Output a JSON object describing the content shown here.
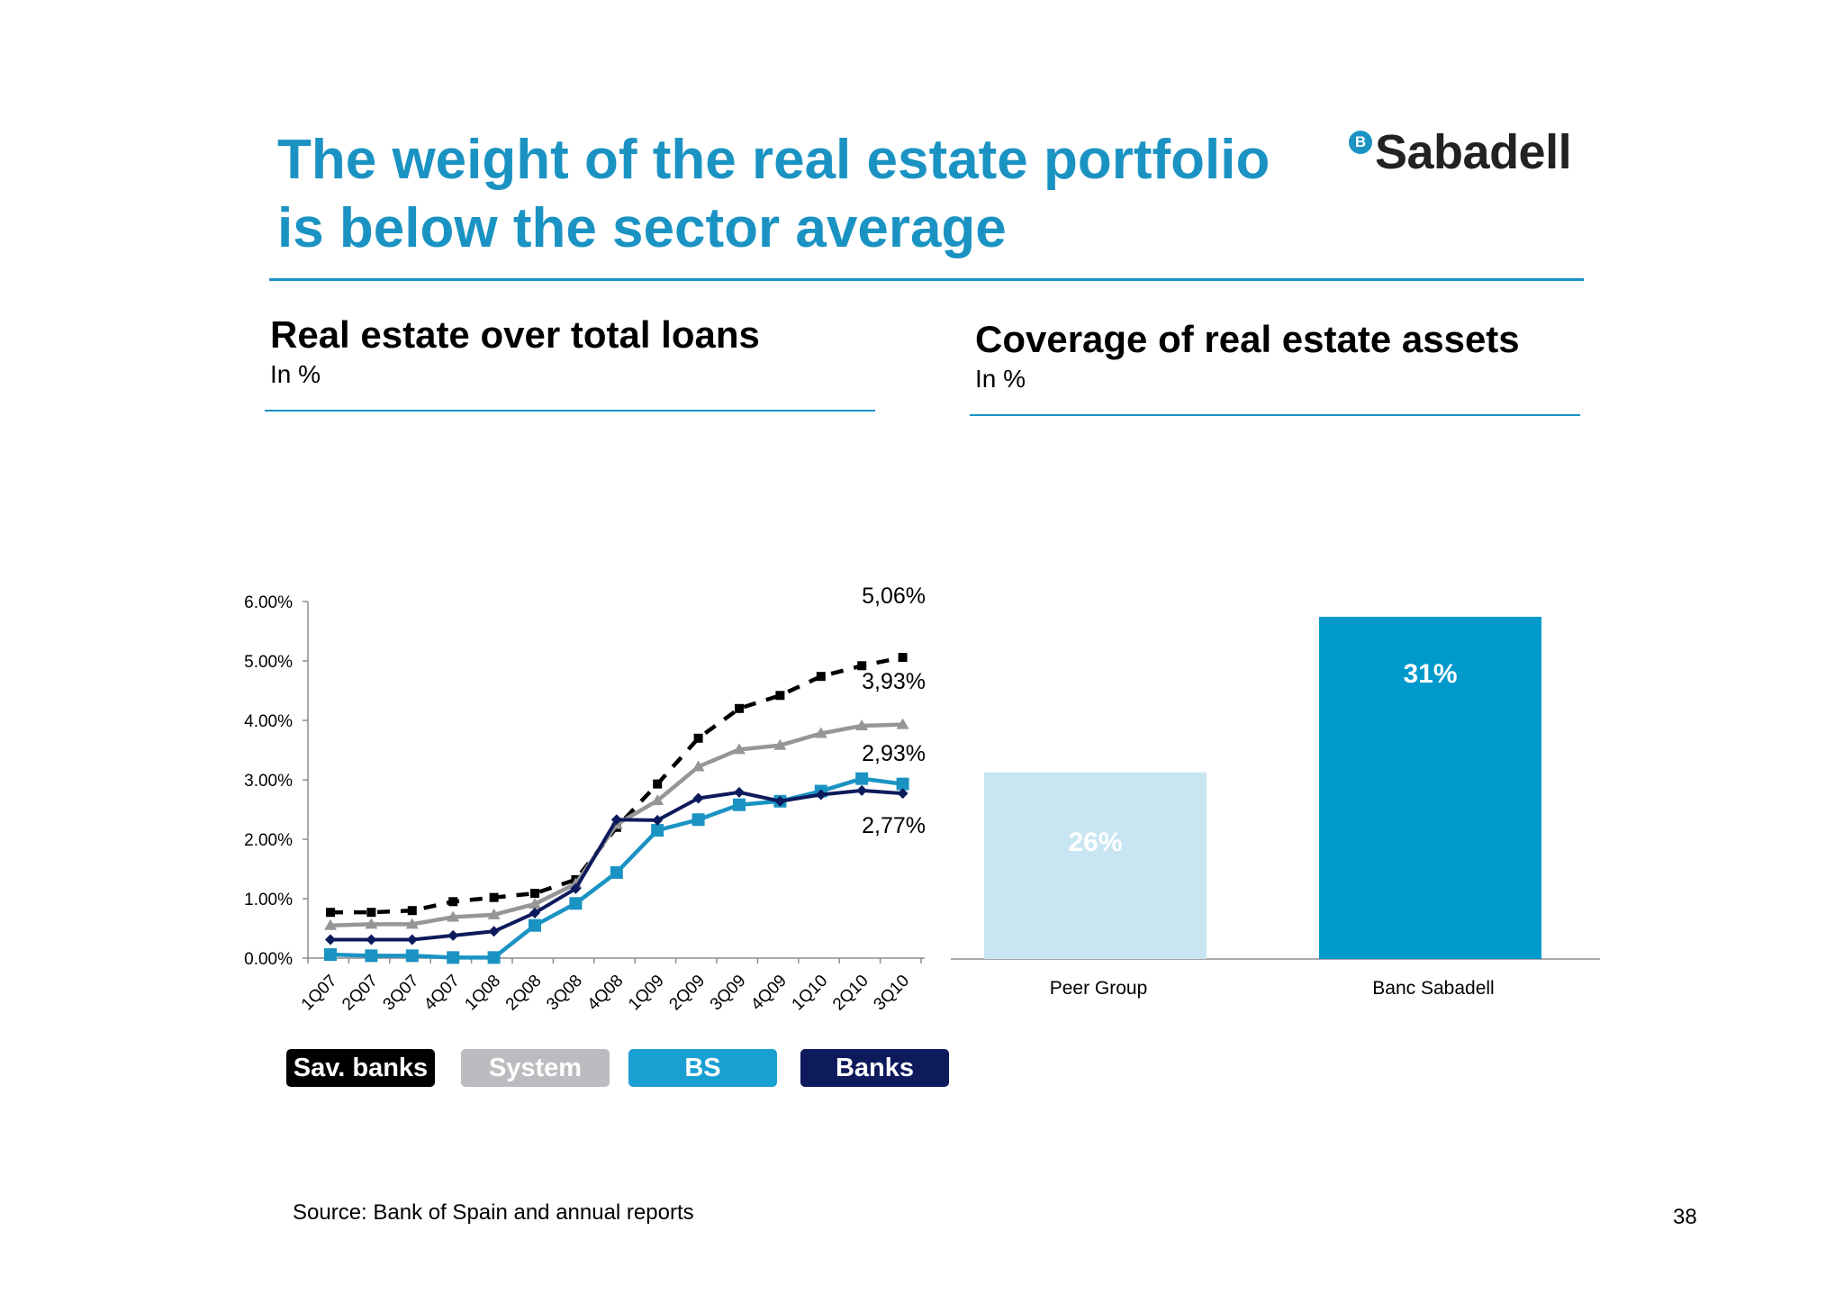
{
  "header": {
    "title_line1": "The weight of the real estate portfolio",
    "title_line2": "is below the sector average",
    "logo_badge": "B",
    "logo_text": "Sabadell"
  },
  "left_panel": {
    "title": "Real estate over total loans",
    "subtitle": "In %"
  },
  "right_panel": {
    "title": "Coverage of real estate assets",
    "subtitle": "In %"
  },
  "footer": {
    "source": "Source: Bank of Spain and annual reports",
    "page_number": "38"
  },
  "chart_data": [
    {
      "type": "line",
      "categories": [
        "1Q07",
        "2Q07",
        "3Q07",
        "4Q07",
        "1Q08",
        "2Q08",
        "3Q08",
        "4Q08",
        "1Q09",
        "2Q09",
        "3Q09",
        "4Q09",
        "1Q10",
        "2Q10",
        "3Q10"
      ],
      "y_ticks": [
        "0.00%",
        "1.00%",
        "2.00%",
        "3.00%",
        "4.00%",
        "5.00%",
        "6.00%"
      ],
      "ylim": [
        0,
        6
      ],
      "series": [
        {
          "name": "Sav. banks",
          "color": "#000000",
          "line_style": "dashed",
          "marker": "square",
          "values": [
            0.77,
            0.77,
            0.8,
            0.95,
            1.02,
            1.09,
            1.32,
            2.2,
            2.93,
            3.7,
            4.2,
            4.42,
            4.74,
            4.92,
            5.06
          ]
        },
        {
          "name": "System",
          "color": "#969696",
          "line_style": "solid",
          "marker": "triangle",
          "values": [
            0.55,
            0.57,
            0.57,
            0.69,
            0.73,
            0.91,
            1.25,
            2.25,
            2.65,
            3.22,
            3.51,
            3.58,
            3.78,
            3.91,
            3.93
          ]
        },
        {
          "name": "BS",
          "color": "#1a93c3",
          "line_style": "solid",
          "marker": "square",
          "values": [
            0.06,
            0.04,
            0.04,
            0.01,
            0.01,
            0.55,
            0.92,
            1.44,
            2.15,
            2.33,
            2.58,
            2.64,
            2.81,
            3.02,
            2.93
          ]
        },
        {
          "name": "Banks",
          "color": "#0d1b5c",
          "line_style": "solid",
          "marker": "diamond",
          "values": [
            0.31,
            0.31,
            0.31,
            0.38,
            0.45,
            0.76,
            1.17,
            2.33,
            2.32,
            2.69,
            2.79,
            2.64,
            2.75,
            2.82,
            2.77
          ]
        }
      ],
      "end_labels": [
        "5,06%",
        "3,93%",
        "2,93%",
        "2,77%"
      ],
      "legend": [
        {
          "label": "Sav. banks",
          "color": "#000000"
        },
        {
          "label": "System",
          "color": "#bcbcc0"
        },
        {
          "label": "BS",
          "color": "#1a9fd2"
        },
        {
          "label": "Banks",
          "color": "#0d1b5c"
        }
      ]
    },
    {
      "type": "bar",
      "categories": [
        "Peer Group",
        "Banc Sabadell"
      ],
      "values": [
        26,
        31
      ],
      "data_labels": [
        "26%",
        "31%"
      ],
      "colors": [
        "#c8e5f2",
        "#0099cc"
      ],
      "ylim": [
        20,
        32.3
      ]
    }
  ]
}
